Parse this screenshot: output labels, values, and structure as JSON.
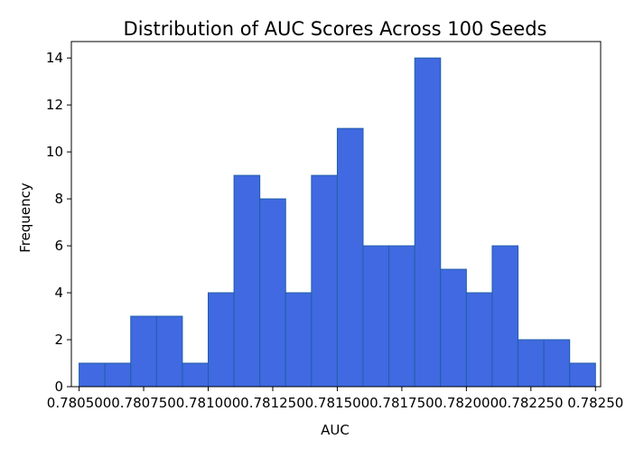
{
  "chart_data": {
    "type": "histogram",
    "title": "Distribution of AUC Scores Across 100 Seeds",
    "xlabel": "AUC",
    "ylabel": "Frequency",
    "bar_color": "#4169e1",
    "edge_color": "#1f5fa8",
    "xlim": [
      0.78047,
      0.78252
    ],
    "ylim": [
      0,
      14.7
    ],
    "bin_edges": [
      0.7805,
      0.7806,
      0.7807,
      0.7808,
      0.7809,
      0.781,
      0.7811,
      0.7812,
      0.7813,
      0.7814,
      0.7815,
      0.7816,
      0.7817,
      0.7818,
      0.7819,
      0.782,
      0.7821,
      0.7822,
      0.7823,
      0.7824
    ],
    "counts": [
      1,
      1,
      3,
      3,
      1,
      4,
      9,
      8,
      4,
      9,
      11,
      6,
      6,
      14,
      5,
      4,
      6,
      2,
      2,
      1
    ],
    "x_ticks": [
      0.7805,
      0.78075,
      0.781,
      0.78125,
      0.7815,
      0.78175,
      0.782,
      0.78225,
      0.7825
    ],
    "x_tick_labels": [
      "0.780500",
      "0.780750",
      "0.781000",
      "0.781250",
      "0.781500",
      "0.781750",
      "0.782000",
      "0.782250",
      "0.78250"
    ],
    "y_ticks": [
      0,
      2,
      4,
      6,
      8,
      10,
      12,
      14
    ],
    "y_tick_labels": [
      "0",
      "2",
      "4",
      "6",
      "8",
      "10",
      "12",
      "14"
    ]
  }
}
